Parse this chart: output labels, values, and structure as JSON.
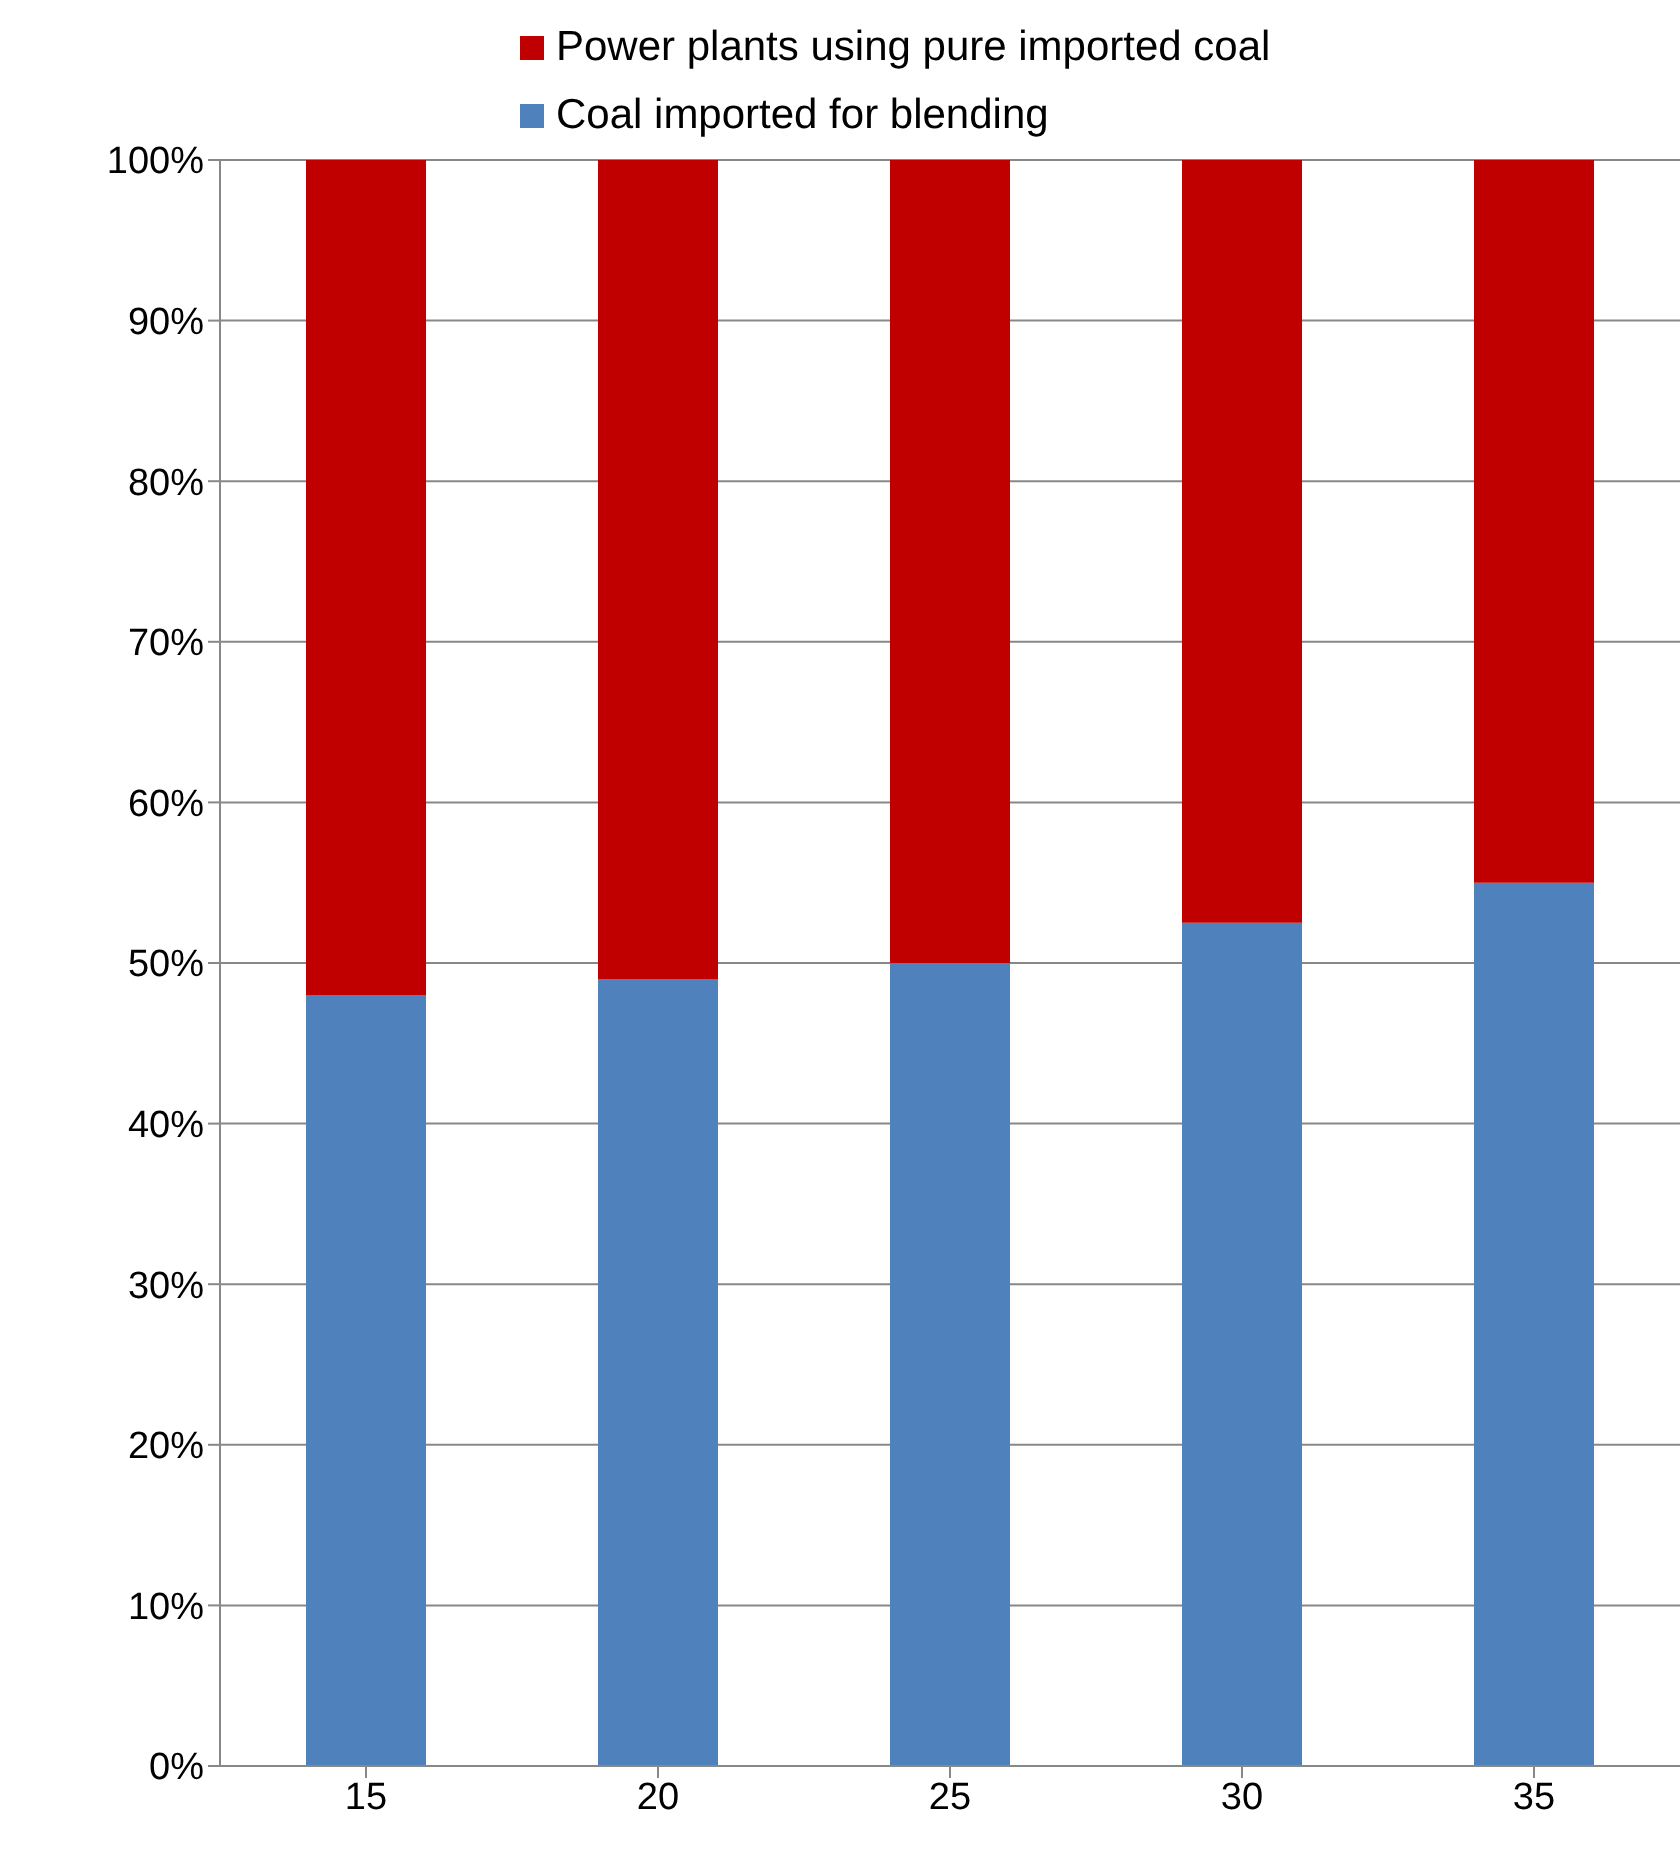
{
  "chart_data": {
    "type": "bar",
    "stacked": true,
    "categories": [
      "15",
      "20",
      "25",
      "30",
      "35"
    ],
    "series": [
      {
        "name": "Coal imported for blending",
        "color": "#4f81bd",
        "values": [
          48,
          49,
          50,
          52.5,
          55
        ]
      },
      {
        "name": "Power plants using pure imported coal",
        "color": "#c00000",
        "values": [
          52,
          51,
          50,
          47.5,
          45
        ]
      }
    ],
    "ylim": [
      0,
      100
    ],
    "yticks": [
      {
        "value": 0,
        "label": "0%"
      },
      {
        "value": 10,
        "label": "10%"
      },
      {
        "value": 20,
        "label": "20%"
      },
      {
        "value": 30,
        "label": "30%"
      },
      {
        "value": 40,
        "label": "40%"
      },
      {
        "value": 50,
        "label": "50%"
      },
      {
        "value": 60,
        "label": "60%"
      },
      {
        "value": 70,
        "label": "70%"
      },
      {
        "value": 80,
        "label": "80%"
      },
      {
        "value": 90,
        "label": "90%"
      },
      {
        "value": 100,
        "label": "100%"
      }
    ],
    "grid": "y",
    "legend": "top"
  }
}
